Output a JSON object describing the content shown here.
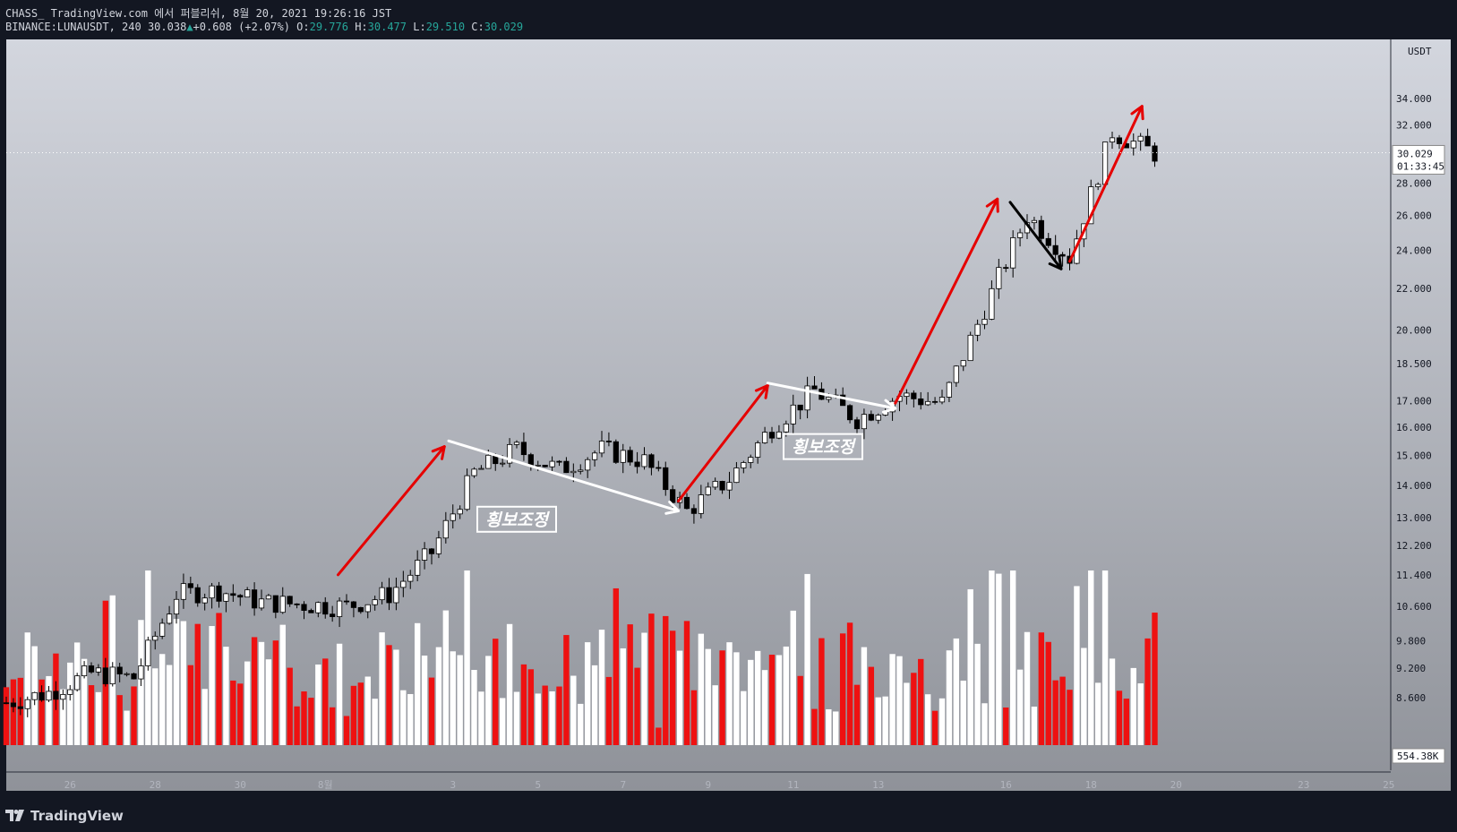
{
  "header": {
    "line1": "CHASS_ TradingView.com 에서 퍼블리쉬, 8월 20, 2021 19:26:16 JST",
    "symbol": "BINANCE:LUNAUSDT, 240",
    "last": "30.038",
    "change": "+0.608 (+2.07%)",
    "o_label": "O:",
    "o_value": "29.776",
    "h_label": "H:",
    "h_value": "30.477",
    "l_label": "L:",
    "l_value": "29.510",
    "c_label": "C:",
    "c_value": "30.029"
  },
  "footer": {
    "brand": "TradingView",
    "logo_icon": "tradingview-logo-icon"
  },
  "chart_data": {
    "type": "candlestick",
    "symbol": "LUNAUSDT",
    "exchange": "BINANCE",
    "interval": "240",
    "price_axis": {
      "unit": "USDT",
      "scale": "log",
      "ticks": [
        "34.000",
        "32.000",
        "28.000",
        "26.000",
        "24.000",
        "22.000",
        "20.000",
        "18.500",
        "17.000",
        "16.000",
        "15.000",
        "14.000",
        "13.000",
        "12.200",
        "11.400",
        "10.600",
        "9.800",
        "9.200",
        "8.600"
      ],
      "current_price": "30.029",
      "countdown": "01:33:45",
      "volume_label": "554.38K"
    },
    "time_axis": [
      "26",
      "28",
      "30",
      "8월",
      "3",
      "5",
      "7",
      "9",
      "11",
      "13",
      "16",
      "18",
      "20",
      "23",
      "25"
    ],
    "annotations": [
      {
        "type": "label",
        "text": "횡보조정"
      },
      {
        "type": "label",
        "text": "횡보조정"
      }
    ],
    "series_close_path": [
      [
        "07-25",
        8.5
      ],
      [
        "07-26",
        8.7
      ],
      [
        "07-27",
        9.1
      ],
      [
        "07-28",
        9.0
      ],
      [
        "07-29",
        10.9
      ],
      [
        "07-30",
        11.0
      ],
      [
        "07-31",
        10.7
      ],
      [
        "08-01",
        10.6
      ],
      [
        "08-02",
        10.9
      ],
      [
        "08-03",
        12.0
      ],
      [
        "08-04",
        14.4
      ],
      [
        "08-05",
        15.2
      ],
      [
        "08-06",
        14.5
      ],
      [
        "08-07",
        15.2
      ],
      [
        "08-08",
        14.8
      ],
      [
        "08-09",
        13.2
      ],
      [
        "08-10",
        14.2
      ],
      [
        "08-11",
        16.0
      ],
      [
        "08-12",
        17.4
      ],
      [
        "08-13",
        16.3
      ],
      [
        "08-14",
        17.2
      ],
      [
        "08-15",
        16.9
      ],
      [
        "08-16",
        21.0
      ],
      [
        "08-17",
        26.0
      ],
      [
        "08-18",
        23.6
      ],
      [
        "08-19",
        31.5
      ],
      [
        "08-20",
        30.0
      ]
    ],
    "colors": {
      "up_candle": "#ffffff",
      "down_candle": "#000000",
      "volume_up": "#ffffff",
      "volume_down": "#ee1111",
      "arrow_up": "#e50000",
      "arrow_side": "#ffffff",
      "arrow_down": "#000000",
      "bg_top": "#d3d6de",
      "bg_bottom": "#8f9299"
    }
  }
}
